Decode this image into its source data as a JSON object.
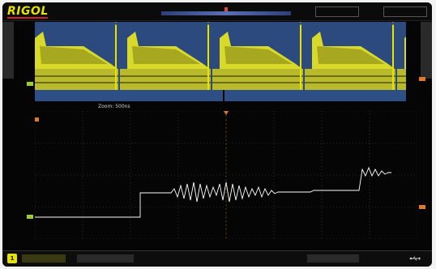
{
  "brand": {
    "logo": "RIGOL"
  },
  "top_status": {
    "status_text": "",
    "timebase": "",
    "sample_rate": "",
    "trigger": "",
    "channel": ""
  },
  "side_tabs": {
    "left": "",
    "right": ""
  },
  "zoom": {
    "label": "Zoom: 500ns"
  },
  "channel": {
    "number": "1",
    "scale": ""
  },
  "colors": {
    "ch1": "#e7e300",
    "overview_bg": "#2c4a7e",
    "grid": "#5a5a5a",
    "marker_orange": "#e07a2a",
    "marker_green": "#9acd32"
  },
  "icons": [
    "usb-icon"
  ]
}
